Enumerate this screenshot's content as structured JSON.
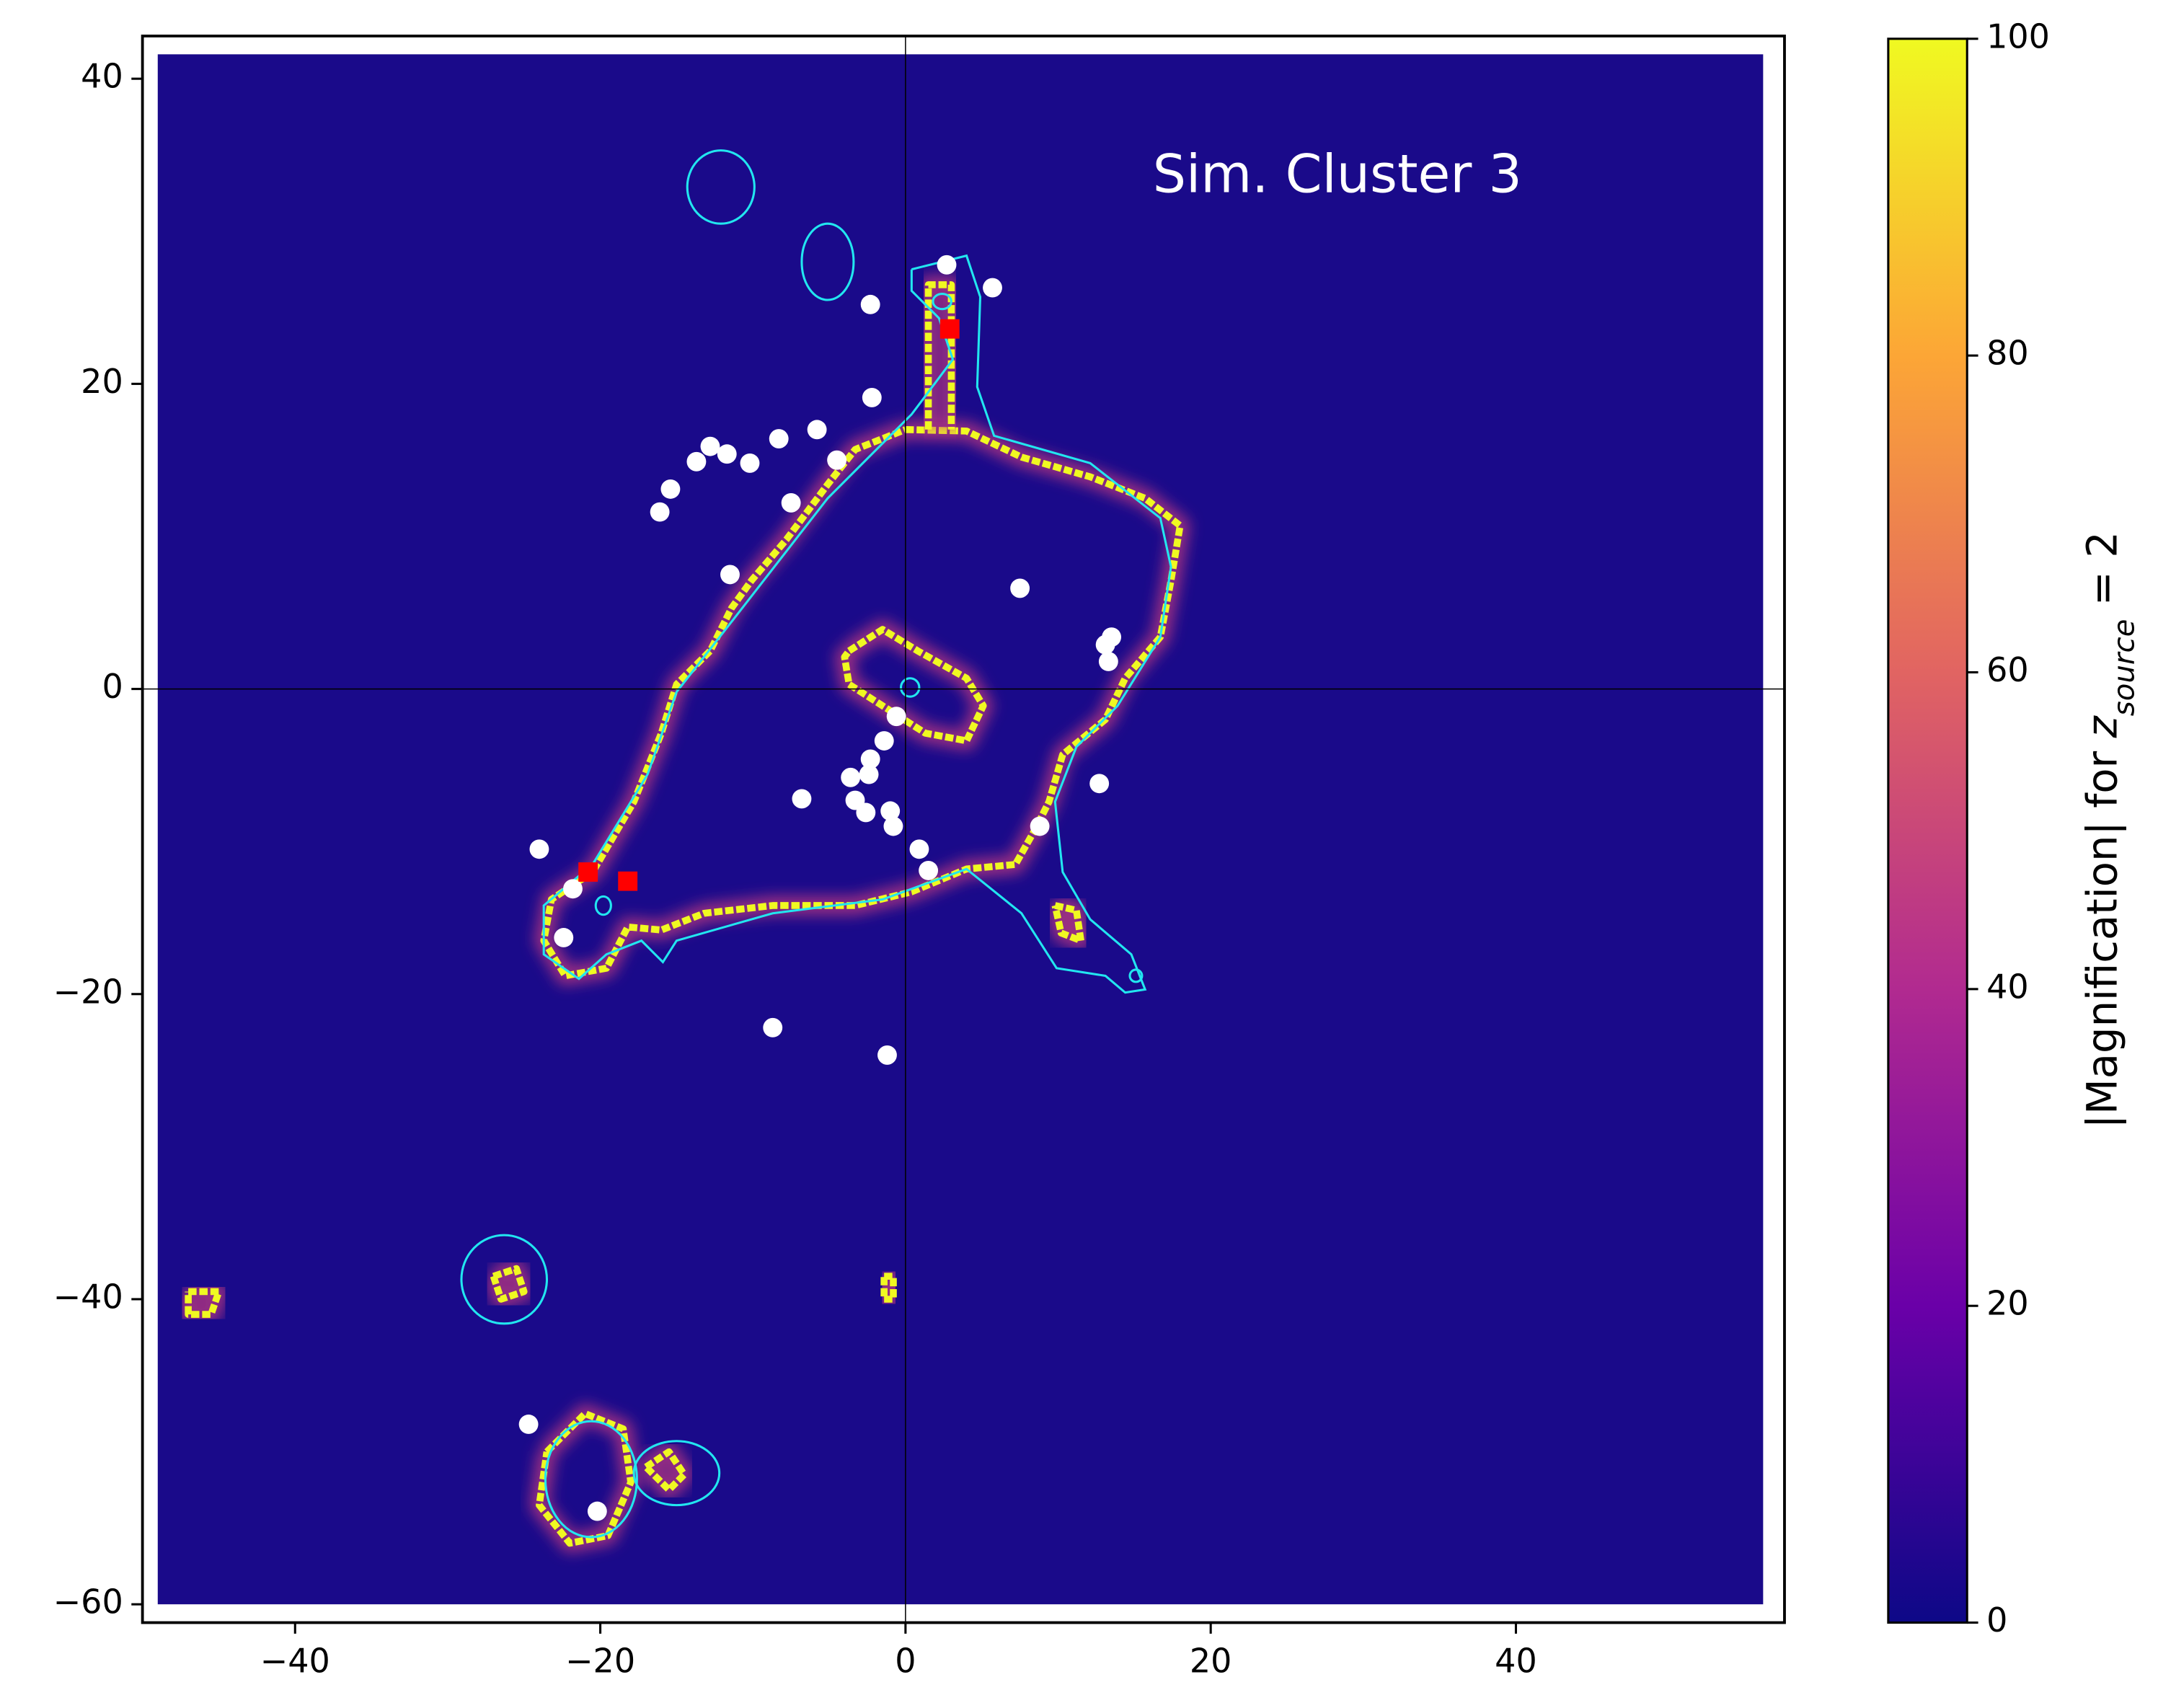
{
  "chart_data": {
    "type": "scatter",
    "title": "Sim. Cluster 3",
    "title_position": [
      28.3,
      33.5
    ],
    "xlim": [
      -50,
      57.6
    ],
    "ylim": [
      -61.2,
      42.8
    ],
    "xticks": [
      {
        "value": -40,
        "label": "−40"
      },
      {
        "value": -20,
        "label": "−20"
      },
      0,
      20,
      40
    ],
    "yticks": [
      {
        "value": -60,
        "label": "−60"
      },
      {
        "value": -40,
        "label": "−40"
      },
      {
        "value": -20,
        "label": "−20"
      },
      0,
      20,
      40
    ],
    "image_extent": [
      -49,
      56.2,
      -60,
      41.6
    ],
    "image_background": "#1a0a8a",
    "reference_lines": {
      "x": 0,
      "y": 0,
      "color": "#000000"
    },
    "series": [
      {
        "color": "#ffffff",
        "marker": "circle",
        "x": [
          2.7,
          5.7,
          -2.3,
          -2.2,
          -5.8,
          -8.3,
          -4.5,
          -12.8,
          -11.7,
          -13.7,
          -10.2,
          -15.4,
          -16.1,
          -7.5,
          -11.5,
          7.5,
          13.1,
          13.5,
          13.3,
          -0.6,
          -1.4,
          -2.3,
          -2.4,
          -3.6,
          -3.3,
          -2.6,
          -1.0,
          -0.8,
          -6.8,
          12.7,
          8.8,
          0.9,
          1.5,
          -24.0,
          -21.8,
          -22.4,
          -8.7,
          -1.2,
          -24.7,
          -20.2
        ],
        "y": [
          27.8,
          26.3,
          25.2,
          19.1,
          17.0,
          16.4,
          15.0,
          15.9,
          15.4,
          14.9,
          14.8,
          13.1,
          11.6,
          12.2,
          7.5,
          6.6,
          2.9,
          3.4,
          1.8,
          -1.8,
          -3.4,
          -4.6,
          -5.6,
          -5.8,
          -7.3,
          -8.1,
          -8.0,
          -9.0,
          -7.2,
          -6.2,
          -9.0,
          -10.5,
          -11.9,
          -10.5,
          -13.1,
          -16.3,
          -22.2,
          -24.0,
          -48.2,
          -53.9
        ]
      },
      {
        "color": "#ff0000",
        "marker": "square",
        "x": [
          2.9,
          -20.8,
          -18.2
        ],
        "y": [
          23.6,
          -12.0,
          -12.6
        ]
      }
    ],
    "critical_curves": {
      "color": "#f0f921",
      "glow": "#c23b80",
      "curves": [
        {
          "x": [
            0,
            4.0,
            7.6,
            12.1,
            15.7,
            18.0,
            17.4,
            16.7,
            14.4,
            13.1,
            10.3,
            9.4,
            8.5,
            7.2,
            4.0,
            0.4,
            -3.3,
            -8.7,
            -13.2,
            -16.0,
            -18.2,
            -19.6,
            -22.3,
            -23.7,
            -23.2,
            -20.5,
            -17.8,
            -16.0,
            -15.0,
            -12.8,
            -11.4,
            -10.1,
            -7.8,
            -5.1,
            -3.3,
            0
          ],
          "y": [
            17.0,
            16.9,
            15.2,
            13.9,
            12.5,
            10.7,
            7.1,
            3.4,
            0.7,
            -2.0,
            -4.3,
            -7.4,
            -9.2,
            -11.5,
            -11.8,
            -13.3,
            -14.2,
            -14.2,
            -14.7,
            -15.8,
            -15.6,
            -18.3,
            -18.8,
            -16.5,
            -13.8,
            -12.0,
            -7.4,
            -2.9,
            0.3,
            2.5,
            5.3,
            7.1,
            9.8,
            13.4,
            15.7,
            17.0
          ]
        },
        {
          "x": [
            1.5,
            1.5,
            3.0,
            3.0
          ],
          "y": [
            17.0,
            26.5,
            26.5,
            17.0
          ]
        },
        {
          "x": [
            -3.7,
            -1.5,
            0.8,
            4.0,
            5.1,
            4.0,
            1.3,
            -1.5,
            -3.7,
            -4.0,
            -3.7
          ],
          "y": [
            2.5,
            3.9,
            2.5,
            0.7,
            -1.1,
            -3.4,
            -2.9,
            -1.1,
            0.3,
            2.1,
            2.5
          ]
        },
        {
          "x": [
            -23.5,
            -21.0,
            -18.5,
            -18.0,
            -19.5,
            -22.0,
            -24.0,
            -23.5
          ],
          "y": [
            -50.0,
            -47.5,
            -48.5,
            -52.0,
            -55.5,
            -56.0,
            -53.5,
            -50.0
          ]
        },
        {
          "x": [
            -17.0,
            -15.5,
            -14.5,
            -15.5,
            -17.0
          ],
          "y": [
            -51.0,
            -50.0,
            -51.5,
            -52.5,
            -51.0
          ]
        },
        {
          "x": [
            -27.0,
            -25.5,
            -25.0,
            -26.5,
            -27.0
          ],
          "y": [
            -38.5,
            -38.0,
            -39.5,
            -40.0,
            -38.5
          ]
        },
        {
          "x": [
            -47.0,
            -45.0,
            -45.5,
            -47.0,
            -47.0
          ],
          "y": [
            -39.5,
            -39.5,
            -41.0,
            -41.0,
            -39.5
          ]
        },
        {
          "x": [
            -1.4,
            -0.8,
            -0.8,
            -1.4,
            -1.4
          ],
          "y": [
            -38.5,
            -38.5,
            -40.0,
            -40.0,
            -38.5
          ]
        },
        {
          "x": [
            9.8,
            11.2,
            11.5,
            10.2,
            9.8
          ],
          "y": [
            -14.2,
            -14.5,
            -16.5,
            -16.0,
            -14.2
          ]
        }
      ]
    },
    "contours": {
      "color": "#22e6f0",
      "curves": [
        {
          "x": [
            0.4,
            4.0,
            4.9,
            4.7,
            5.8,
            12.1,
            16.7,
            17.4,
            16.7,
            13.9,
            11.2,
            9.8,
            10.3,
            12.1,
            14.8,
            15.7,
            14.4,
            13.1,
            9.9,
            7.6,
            4.0,
            -1.5,
            -8.7,
            -15.0,
            -15.9,
            -17.3,
            -19.6,
            -21.4,
            -23.7,
            -23.7,
            -20.5,
            -16.9,
            -15.0,
            -11.4,
            -5.1,
            0.4,
            3.1,
            2.2,
            0.4,
            0.4
          ],
          "y": [
            27.5,
            28.4,
            25.7,
            19.8,
            16.6,
            14.8,
            11.2,
            8.0,
            3.4,
            -1.1,
            -3.8,
            -7.4,
            -12.0,
            -15.1,
            -17.4,
            -19.7,
            -19.9,
            -18.8,
            -18.3,
            -14.7,
            -11.8,
            -13.8,
            -14.7,
            -16.5,
            -17.9,
            -16.5,
            -17.4,
            -19.0,
            -17.4,
            -14.2,
            -11.5,
            -5.6,
            -0.2,
            4.4,
            12.5,
            18.0,
            21.6,
            24.3,
            26.1,
            27.5
          ]
        }
      ],
      "loops": [
        {
          "cx": -12.1,
          "cy": 32.9,
          "rx": 2.2,
          "ry": 2.4
        },
        {
          "cx": -5.1,
          "cy": 28.0,
          "rx": 1.7,
          "ry": 2.5
        },
        {
          "cx": -26.3,
          "cy": -38.7,
          "rx": 2.8,
          "ry": 2.9
        },
        {
          "cx": -20.6,
          "cy": -51.8,
          "rx": 3.0,
          "ry": 3.8
        },
        {
          "cx": -15.0,
          "cy": -51.4,
          "rx": 2.8,
          "ry": 2.1
        },
        {
          "cx": 0.3,
          "cy": 0.1,
          "rx": 0.6,
          "ry": 0.6
        },
        {
          "cx": 2.4,
          "cy": 25.4,
          "rx": 0.6,
          "ry": 0.5
        },
        {
          "cx": -19.8,
          "cy": -14.2,
          "rx": 0.5,
          "ry": 0.6
        },
        {
          "cx": 15.1,
          "cy": -18.8,
          "rx": 0.4,
          "ry": 0.4
        }
      ]
    },
    "colorbar": {
      "lim": [
        0,
        100
      ],
      "ticks": [
        0,
        20,
        40,
        60,
        80,
        100
      ],
      "colors": [
        "#0d0887",
        "#6a00a8",
        "#b12a90",
        "#e16462",
        "#fca636",
        "#f0f921"
      ],
      "label_parts": [
        "|Magnification| for ",
        "z",
        "source",
        " = 2"
      ]
    }
  }
}
